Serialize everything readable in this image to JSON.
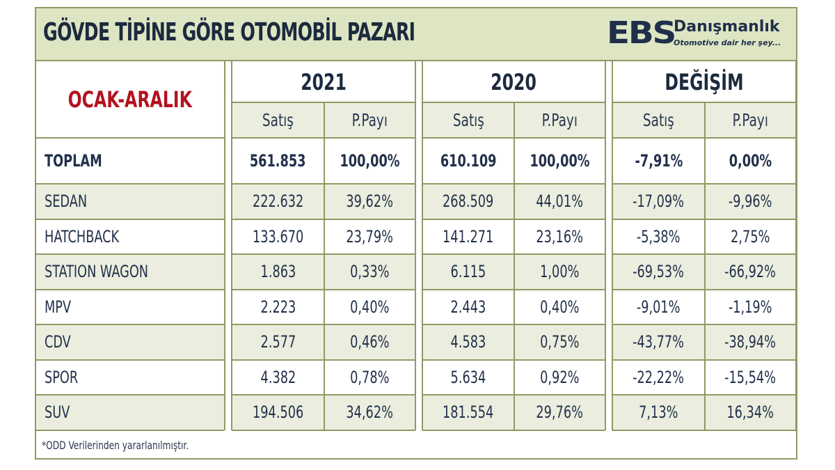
{
  "header": {
    "title": "GÖVDE TİPİNE GÖRE OTOMOBİL PAZARI",
    "logo": {
      "mark": "EBS",
      "name": "Danışmanlık",
      "tagline": "Otomotive dair her şey..."
    }
  },
  "table": {
    "period_label": "OCAK-ARALIK",
    "groups": [
      {
        "label": "2021",
        "sub": [
          "Satış",
          "P.Payı"
        ]
      },
      {
        "label": "2020",
        "sub": [
          "Satış",
          "P.Payı"
        ]
      },
      {
        "label": "DEĞİŞİM",
        "sub": [
          "Satış",
          "P.Payı"
        ]
      }
    ],
    "total": {
      "label": "TOPLAM",
      "values": [
        "561.853",
        "100,00%",
        "610.109",
        "100,00%",
        "-7,91%",
        "0,00%"
      ]
    },
    "rows": [
      {
        "label": "SEDAN",
        "values": [
          "222.632",
          "39,62%",
          "268.509",
          "44,01%",
          "-17,09%",
          "-9,96%"
        ]
      },
      {
        "label": "HATCHBACK",
        "values": [
          "133.670",
          "23,79%",
          "141.271",
          "23,16%",
          "-5,38%",
          "2,75%"
        ]
      },
      {
        "label": "STATION WAGON",
        "values": [
          "1.863",
          "0,33%",
          "6.115",
          "1,00%",
          "-69,53%",
          "-66,92%"
        ]
      },
      {
        "label": "MPV",
        "values": [
          "2.223",
          "0,40%",
          "2.443",
          "0,40%",
          "-9,01%",
          "-1,19%"
        ]
      },
      {
        "label": "CDV",
        "values": [
          "2.577",
          "0,46%",
          "4.583",
          "0,75%",
          "-43,77%",
          "-38,94%"
        ]
      },
      {
        "label": "SPOR",
        "values": [
          "4.382",
          "0,78%",
          "5.634",
          "0,92%",
          "-22,22%",
          "-15,54%"
        ]
      },
      {
        "label": "SUV",
        "values": [
          "194.506",
          "34,62%",
          "181.554",
          "29,76%",
          "7,13%",
          "16,34%"
        ]
      }
    ],
    "footnote": "*ODD Verilerinden yararlanılmıştır."
  },
  "colors": {
    "title_bg": "#dde5c3",
    "border": "#8f9a63",
    "shaded_row": "#ebeedf",
    "period_red": "#b3121f",
    "text_navy": "#1c2a3e"
  }
}
